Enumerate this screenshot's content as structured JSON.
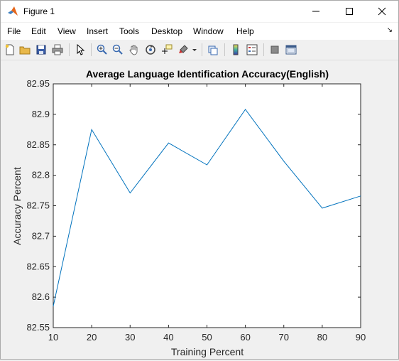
{
  "window": {
    "title": "Figure 1"
  },
  "menu": {
    "items": [
      "File",
      "Edit",
      "View",
      "Insert",
      "Tools",
      "Desktop",
      "Window",
      "Help"
    ],
    "dock_glyph": "↘"
  },
  "toolbar": {
    "icons": [
      "new-figure-icon",
      "open-file-icon",
      "save-icon",
      "print-icon",
      "pointer-icon",
      "zoom-in-icon",
      "zoom-out-icon",
      "pan-icon",
      "rotate-3d-icon",
      "data-cursor-icon",
      "brush-icon",
      "brush-dropdown-icon",
      "link-plot-icon",
      "colorbar-icon",
      "legend-icon",
      "hide-plot-tools-icon",
      "show-plot-tools-icon"
    ]
  },
  "chart_data": {
    "type": "line",
    "title": "Average Language Identification Accuracy(English)",
    "xlabel": "Training Percent",
    "ylabel": "Accuracy Percent",
    "xlim": [
      10,
      90
    ],
    "ylim": [
      82.55,
      82.95
    ],
    "xticks": [
      "10",
      "20",
      "30",
      "40",
      "50",
      "60",
      "70",
      "80",
      "90"
    ],
    "yticks": [
      "82.55",
      "82.6",
      "82.65",
      "82.7",
      "82.75",
      "82.8",
      "82.85",
      "82.9",
      "82.95"
    ],
    "x": [
      10,
      20,
      30,
      40,
      50,
      60,
      70,
      80,
      90
    ],
    "series": [
      {
        "values": [
          82.585,
          82.875,
          82.771,
          82.853,
          82.817,
          82.908,
          82.823,
          82.746,
          82.766
        ]
      }
    ],
    "grid": false,
    "line_color": "#0072bd"
  }
}
